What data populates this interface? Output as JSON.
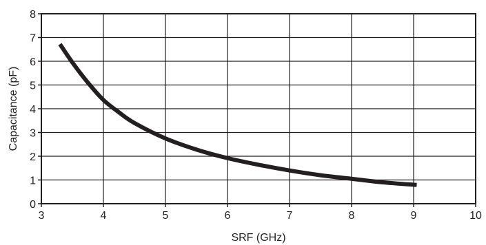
{
  "chart_data": {
    "type": "line",
    "title": "",
    "xlabel": "SRF (GHz)",
    "ylabel": "Capacitance (pF)",
    "xlim": [
      3,
      10
    ],
    "ylim": [
      0,
      8
    ],
    "x_ticks": [
      "3",
      "4",
      "5",
      "6",
      "7",
      "8",
      "9",
      "10"
    ],
    "y_ticks": [
      "0",
      "1",
      "2",
      "3",
      "4",
      "5",
      "6",
      "7",
      "8"
    ],
    "grid": true,
    "legend": "none",
    "series": [
      {
        "color": "#231f20",
        "x": [
          3.3,
          3.5,
          3.75,
          4.0,
          4.25,
          4.5,
          5.0,
          5.5,
          6.0,
          6.5,
          7.0,
          7.5,
          8.0,
          8.5,
          9.05
        ],
        "y": [
          6.72,
          5.95,
          5.1,
          4.37,
          3.85,
          3.4,
          2.75,
          2.28,
          1.92,
          1.64,
          1.4,
          1.2,
          1.05,
          0.9,
          0.79
        ]
      }
    ]
  }
}
